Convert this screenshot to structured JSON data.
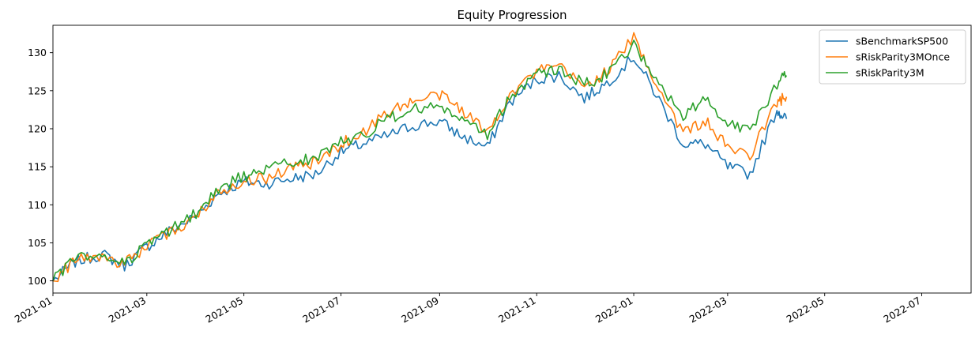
{
  "chart_data": {
    "type": "line",
    "title": "Equity Progression",
    "xlabel": "",
    "ylabel": "",
    "x_ticks": [
      "2021-01",
      "2021-03",
      "2021-05",
      "2021-07",
      "2021-09",
      "2021-11",
      "2022-01",
      "2022-03",
      "2022-05",
      "2022-07"
    ],
    "y_ticks": [
      100,
      105,
      110,
      115,
      120,
      125,
      130
    ],
    "xlim": [
      "2021-01-01",
      "2022-08-01"
    ],
    "ylim": [
      98.4,
      133.6
    ],
    "grid": false,
    "legend_position": "top-right",
    "x": [
      "2021-01-01",
      "2021-01-15",
      "2021-02-01",
      "2021-02-15",
      "2021-03-01",
      "2021-03-15",
      "2021-04-01",
      "2021-04-15",
      "2021-05-01",
      "2021-05-15",
      "2021-06-01",
      "2021-06-15",
      "2021-07-01",
      "2021-07-15",
      "2021-08-01",
      "2021-08-15",
      "2021-09-01",
      "2021-09-15",
      "2021-10-01",
      "2021-10-15",
      "2021-11-01",
      "2021-11-15",
      "2021-12-01",
      "2021-12-15",
      "2022-01-01",
      "2022-01-15",
      "2022-02-01",
      "2022-02-15",
      "2022-03-01",
      "2022-03-15",
      "2022-04-01",
      "2022-04-07"
    ],
    "series": [
      {
        "name": "sBenchmarkSP500",
        "color": "#1f77b4",
        "values": [
          100.0,
          102.5,
          103.5,
          102.0,
          104.5,
          106.5,
          108.5,
          111.5,
          113.0,
          112.8,
          113.5,
          114.0,
          117.0,
          118.0,
          119.2,
          120.4,
          121.0,
          119.0,
          117.5,
          123.5,
          126.5,
          127.0,
          124.0,
          126.0,
          129.5,
          124.5,
          118.0,
          118.0,
          115.0,
          114.0,
          122.5,
          121.3
        ]
      },
      {
        "name": "sRiskParity3MOnce",
        "color": "#ff7f0e",
        "values": [
          100.0,
          102.8,
          103.2,
          102.2,
          104.6,
          106.2,
          108.4,
          111.8,
          113.2,
          113.5,
          115.0,
          115.5,
          118.0,
          119.5,
          122.5,
          123.5,
          124.5,
          122.5,
          119.5,
          124.5,
          127.5,
          128.2,
          125.5,
          127.5,
          132.0,
          126.0,
          119.5,
          121.0,
          117.5,
          116.5,
          123.5,
          124.2
        ]
      },
      {
        "name": "sRiskParity3M",
        "color": "#2ca02c",
        "values": [
          100.0,
          103.0,
          103.3,
          102.4,
          104.8,
          106.5,
          108.8,
          112.0,
          113.8,
          114.5,
          115.8,
          116.0,
          118.5,
          119.2,
          121.5,
          122.5,
          123.0,
          121.0,
          119.0,
          124.0,
          127.2,
          127.8,
          125.8,
          127.2,
          131.0,
          126.5,
          121.5,
          124.0,
          121.0,
          119.5,
          126.0,
          127.0
        ]
      }
    ]
  }
}
